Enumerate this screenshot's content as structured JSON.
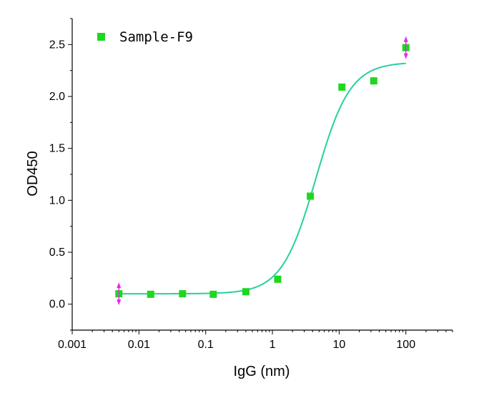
{
  "chart_data": {
    "type": "scatter",
    "xscale": "log",
    "xlabel": "IgG (nm)",
    "ylabel": "OD450",
    "xlim": [
      0.001,
      500
    ],
    "ylim": [
      -0.25,
      2.75
    ],
    "xticks": [
      0.001,
      0.01,
      0.1,
      1,
      10,
      100
    ],
    "xtick_labels": [
      "0.001",
      "0.01",
      "0.1",
      "1",
      "10",
      "100"
    ],
    "yticks": [
      0.0,
      0.5,
      1.0,
      1.5,
      2.0,
      2.5
    ],
    "ytick_labels": [
      "0.0",
      "0.5",
      "1.0",
      "1.5",
      "2.0",
      "2.5"
    ],
    "grid": false,
    "legend_position": "top-left",
    "series": [
      {
        "name": "Sample-F9",
        "marker": "square",
        "color": "#1ed71e",
        "x": [
          0.005,
          0.015,
          0.045,
          0.13,
          0.4,
          1.2,
          3.7,
          11,
          33,
          100
        ],
        "y": [
          0.1,
          0.095,
          0.1,
          0.095,
          0.12,
          0.24,
          1.04,
          2.09,
          2.15,
          2.47
        ]
      }
    ],
    "fit": {
      "model": "four-parameter logistic",
      "color": "#26d0a0",
      "bottom": 0.1,
      "top": 2.33,
      "ec50": 4.5,
      "hill": 1.7,
      "x_range": [
        0.005,
        100
      ]
    },
    "annotation_markers": {
      "shape": "double-arrow",
      "color": "#ee22ee",
      "x": [
        0.005,
        100
      ],
      "y": [
        0.1,
        2.47
      ]
    }
  }
}
